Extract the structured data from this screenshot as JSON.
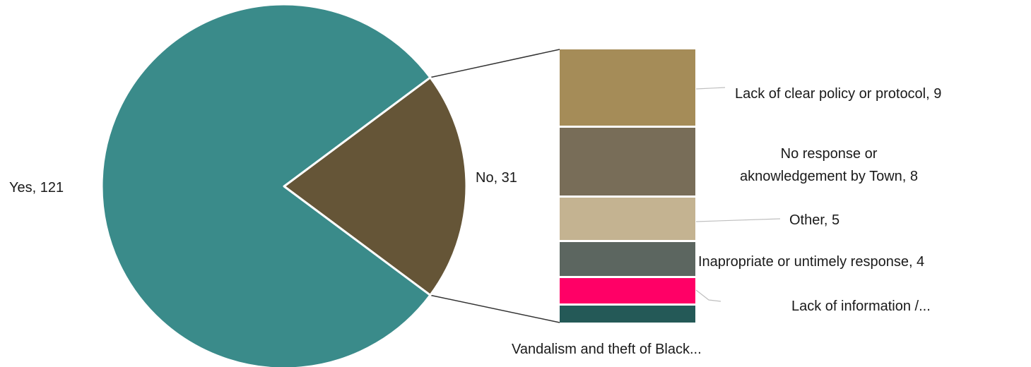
{
  "chart_data": {
    "type": "bar-of-pie",
    "title": "",
    "pie": {
      "slices": [
        {
          "category": "Yes",
          "value": 121,
          "label": "Yes, 121",
          "color": "#3A8B8A"
        },
        {
          "category": "No",
          "value": 31,
          "label": "No, 31",
          "color": "#655537"
        }
      ]
    },
    "breakdown": {
      "of": "No",
      "segments": [
        {
          "category": "Lack of clear policy or protocol",
          "value": 9,
          "label_lines": [
            "Lack of clear policy or protocol, 9"
          ],
          "color": "#A58C58"
        },
        {
          "category": "No response or aknowledgement by Town",
          "value": 8,
          "label_lines": [
            "No response or",
            "aknowledgement by Town, 8"
          ],
          "color": "#786D58"
        },
        {
          "category": "Other",
          "value": 5,
          "label_lines": [
            "Other, 5"
          ],
          "color": "#C4B391"
        },
        {
          "category": "Inapropriate or untimely response",
          "value": 4,
          "label_lines": [
            "Inapropriate or untimely response, 4"
          ],
          "color": "#5C6660"
        },
        {
          "category": "Lack of information /...",
          "value": 3,
          "label_lines": [
            "Lack of information /..."
          ],
          "color": "#FF0066"
        },
        {
          "category": "Vandalism and theft of Black...",
          "value": 2,
          "label_lines": [
            "Vandalism and theft of Black..."
          ],
          "color": "#245957"
        }
      ]
    }
  }
}
